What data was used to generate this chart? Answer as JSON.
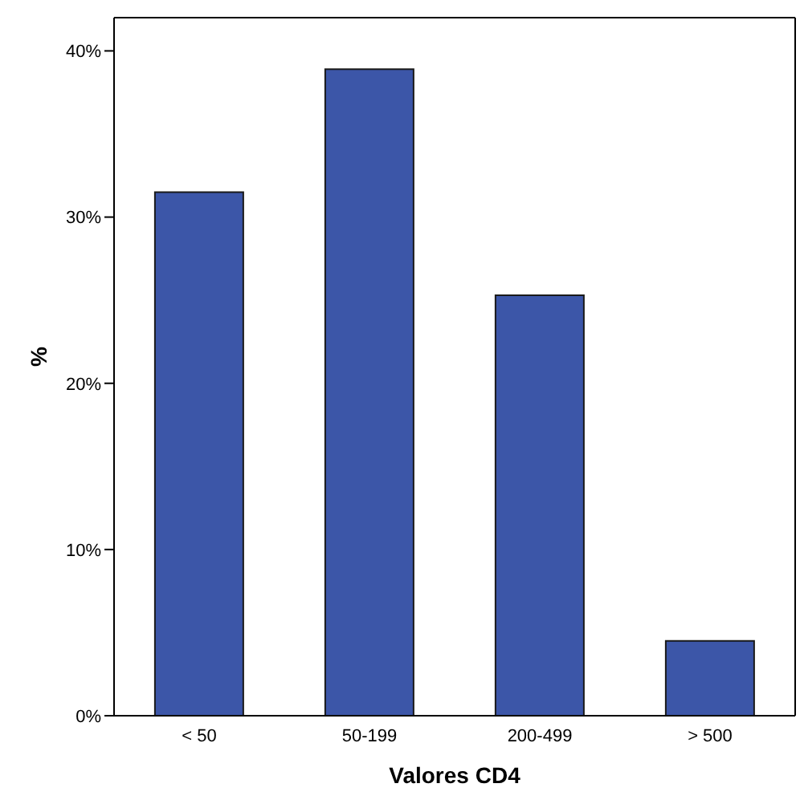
{
  "chart_data": {
    "type": "bar",
    "xlabel": "Valores CD4",
    "ylabel": "%",
    "categories": [
      "< 50",
      "50-199",
      "200-499",
      "> 500"
    ],
    "values": [
      31.5,
      38.9,
      25.3,
      4.5
    ],
    "color": "#3c56a8",
    "ylim": [
      0,
      42
    ],
    "yticks": [
      {
        "value": 0,
        "label": "0%"
      },
      {
        "value": 10,
        "label": "10%"
      },
      {
        "value": 20,
        "label": "20%"
      },
      {
        "value": 30,
        "label": "30%"
      },
      {
        "value": 40,
        "label": "40%"
      }
    ],
    "grid": false,
    "legend": false
  }
}
